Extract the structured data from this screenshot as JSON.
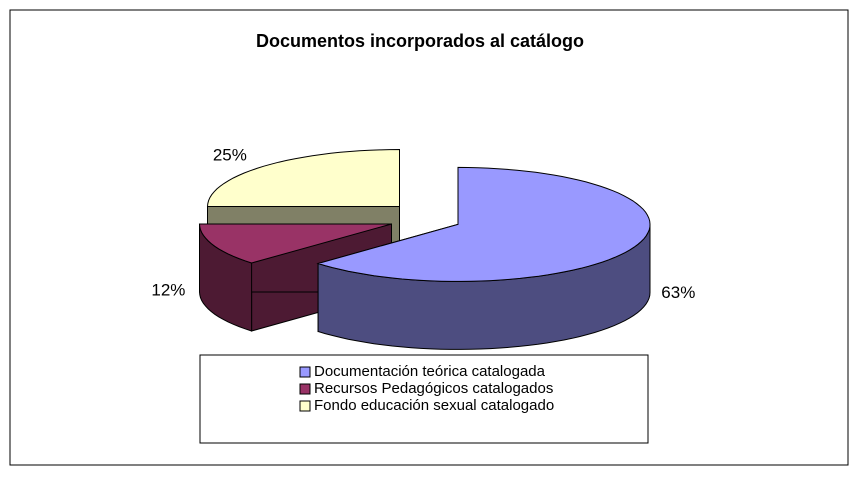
{
  "chart_data": {
    "type": "pie3d",
    "title": "Documentos incorporados al catálogo",
    "categories": [
      "Documentación teórica catalogada",
      "Recursos Pedagógicos catalogados",
      "Fondo educación sexual catalogado"
    ],
    "values": [
      63,
      12,
      25
    ],
    "value_labels": [
      "63%",
      "12%",
      "25%"
    ],
    "colors": [
      "#9999ff",
      "#993366",
      "#ffffcc"
    ],
    "legend": "bottom"
  }
}
